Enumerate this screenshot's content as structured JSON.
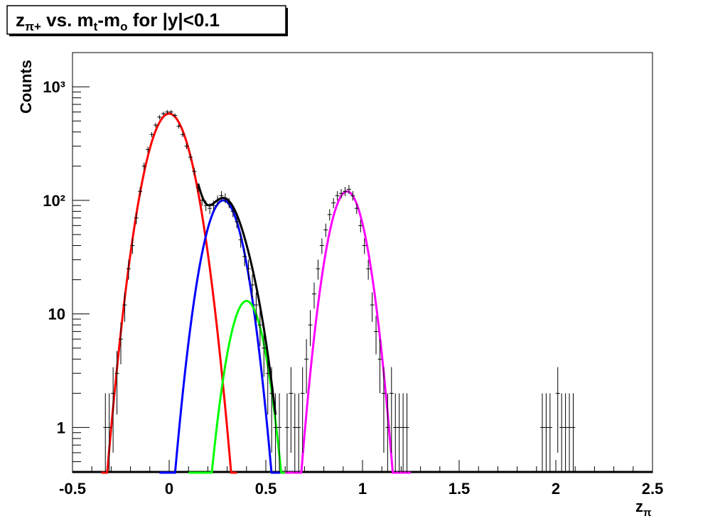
{
  "chart_data": {
    "type": "histogram-fit",
    "title": [
      "z",
      "π+",
      " vs. m",
      "t",
      "-m",
      "o",
      " for |y|<0.1"
    ],
    "xlabel": [
      "z",
      "π"
    ],
    "ylabel": "Counts",
    "xlim": [
      -0.5,
      2.5
    ],
    "ylim": [
      0.4,
      2000
    ],
    "log_y": true,
    "xticks": [
      -0.5,
      0,
      0.5,
      1,
      1.5,
      2,
      2.5
    ],
    "xminorticks": [
      -0.4,
      -0.3,
      -0.2,
      -0.1,
      0.1,
      0.2,
      0.3,
      0.4,
      0.6,
      0.7,
      0.8,
      0.9,
      1.1,
      1.2,
      1.3,
      1.4,
      1.6,
      1.7,
      1.8,
      1.9,
      2.1,
      2.2,
      2.3,
      2.4
    ],
    "yticks": [
      1,
      10,
      {
        "value": 100,
        "label": "10²"
      },
      {
        "value": 1000,
        "label": "10³"
      }
    ],
    "yminorticks": [
      0.5,
      0.6,
      0.7,
      0.8,
      0.9,
      2,
      3,
      4,
      5,
      6,
      7,
      8,
      9,
      20,
      30,
      40,
      50,
      60,
      70,
      80,
      90,
      200,
      300,
      400,
      500,
      600,
      700,
      800,
      900,
      2000
    ],
    "points": {
      "color": "#000000",
      "x": [
        -0.33,
        -0.31,
        -0.29,
        -0.27,
        -0.25,
        -0.23,
        -0.21,
        -0.19,
        -0.17,
        -0.15,
        -0.13,
        -0.11,
        -0.09,
        -0.07,
        -0.05,
        -0.03,
        -0.01,
        0.01,
        0.03,
        0.05,
        0.07,
        0.09,
        0.11,
        0.13,
        0.15,
        0.17,
        0.19,
        0.21,
        0.23,
        0.25,
        0.27,
        0.29,
        0.31,
        0.33,
        0.35,
        0.37,
        0.39,
        0.41,
        0.43,
        0.45,
        0.47,
        0.49,
        0.51,
        0.53,
        0.55,
        0.57,
        0.61,
        0.63,
        0.65,
        0.67,
        0.69,
        0.71,
        0.73,
        0.75,
        0.77,
        0.79,
        0.81,
        0.83,
        0.85,
        0.87,
        0.89,
        0.91,
        0.93,
        0.95,
        0.97,
        0.99,
        1.01,
        1.03,
        1.05,
        1.07,
        1.09,
        1.11,
        1.13,
        1.15,
        1.17,
        1.19,
        1.21,
        1.23,
        1.93,
        1.95,
        1.97,
        2.01,
        2.03,
        2.05,
        2.07,
        2.09
      ],
      "values": [
        1,
        1,
        2,
        3,
        6,
        12,
        25,
        40,
        70,
        120,
        200,
        280,
        380,
        460,
        540,
        580,
        600,
        600,
        560,
        450,
        380,
        300,
        240,
        180,
        130,
        100,
        90,
        85,
        90,
        100,
        110,
        105,
        95,
        80,
        65,
        45,
        32,
        25,
        18,
        12,
        8,
        5,
        3,
        2,
        1,
        1,
        1,
        2,
        1,
        1,
        2,
        4,
        8,
        15,
        25,
        40,
        55,
        75,
        95,
        110,
        115,
        120,
        125,
        110,
        85,
        60,
        40,
        25,
        12,
        7,
        4,
        2,
        1,
        2,
        1,
        1,
        1,
        1,
        1,
        1,
        1,
        2,
        1,
        1,
        1,
        1
      ],
      "errors": [
        1,
        1,
        1.4,
        1.7,
        2.4,
        3.5,
        5,
        6.3,
        8.4,
        11,
        14.1,
        16.7,
        19.5,
        21.4,
        23.2,
        24.1,
        24.5,
        24.5,
        23.7,
        21.2,
        19.5,
        17.3,
        15.5,
        13.4,
        11.4,
        10,
        9.5,
        9.2,
        9.5,
        10,
        10.5,
        10.2,
        9.7,
        8.9,
        8.1,
        6.7,
        5.7,
        5,
        4.2,
        3.5,
        2.8,
        2.2,
        1.7,
        1.4,
        1,
        1,
        1,
        1.4,
        1,
        1,
        1.4,
        2,
        2.8,
        3.9,
        5,
        6.3,
        7.4,
        8.7,
        9.7,
        10.5,
        10.7,
        11,
        11.2,
        10.5,
        9.2,
        7.7,
        6.3,
        5,
        3.5,
        2.6,
        2,
        1.4,
        1,
        1.4,
        1,
        1,
        1,
        1,
        1,
        1,
        1,
        1.4,
        1,
        1,
        1,
        1
      ]
    },
    "fits": [
      {
        "color": "#ff0000",
        "amplitude": 580,
        "mean": 0,
        "sigma": 0.084,
        "range": [
          -0.35,
          0.35
        ]
      },
      {
        "color": "#0000ff",
        "amplitude": 100,
        "mean": 0.28,
        "sigma": 0.075,
        "range": [
          -0.05,
          0.6
        ]
      },
      {
        "color": "#00ff00",
        "amplitude": 13,
        "mean": 0.4,
        "sigma": 0.068,
        "range": [
          0.1,
          0.65
        ]
      },
      {
        "color": "#ff00ff",
        "amplitude": 120,
        "mean": 0.92,
        "sigma": 0.07,
        "range": [
          0.6,
          1.25
        ]
      },
      {
        "color": "#000000",
        "sum_of": [
          0,
          1,
          2
        ],
        "range": [
          0.15,
          0.55
        ]
      }
    ]
  }
}
